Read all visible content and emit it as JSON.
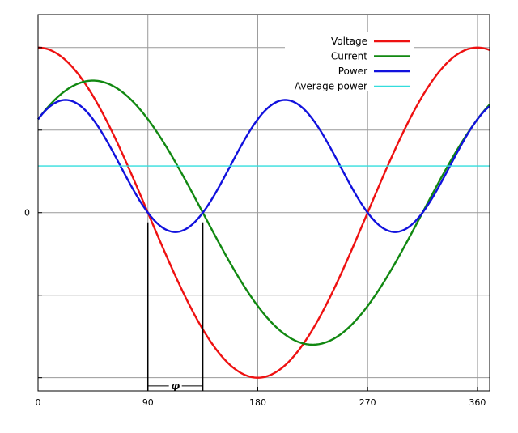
{
  "chart_data": {
    "type": "line",
    "title": "",
    "xlabel": "",
    "ylabel": "",
    "xlim": [
      0,
      370
    ],
    "ylim": [
      -1.08,
      1.2
    ],
    "x_ticks": [
      0,
      90,
      180,
      270,
      360
    ],
    "x_tick_labels": [
      "0",
      "90",
      "180",
      "270",
      "360"
    ],
    "y_ticks": [
      -1,
      -0.5,
      0,
      0.5,
      1
    ],
    "y_tick_labels": [
      "",
      "",
      "0",
      "",
      ""
    ],
    "grid": true,
    "legend_position": "top-right",
    "series": [
      {
        "name": "Voltage",
        "color": "#ee1111",
        "function": "cos(x)",
        "amplitude": 1,
        "phase_deg": 0
      },
      {
        "name": "Current",
        "color": "#118811",
        "function": "0.8*cos(x-45)",
        "amplitude": 0.8,
        "phase_deg": 45
      },
      {
        "name": "Power",
        "color": "#1111dd",
        "function": "0.8*cos(x)*cos(x-45)"
      },
      {
        "name": "Average power",
        "color": "#33dddd",
        "function": "0.4*cos(45)",
        "value": 0.283
      }
    ],
    "annotation": {
      "label": "φ",
      "from_x": 90,
      "to_x": 135,
      "y": -1.05
    }
  }
}
